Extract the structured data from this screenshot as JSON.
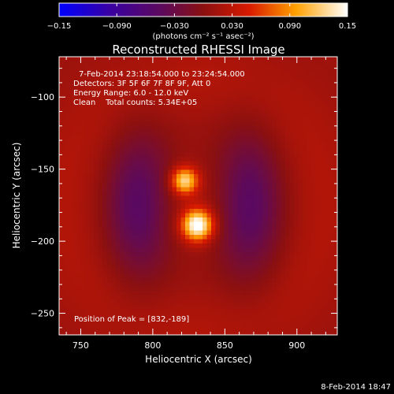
{
  "chart_data": {
    "type": "heatmap",
    "title": "Reconstructed RHESSI Image",
    "xlabel": "Heliocentric X (arcsec)",
    "ylabel": "Heliocentric Y (arcsec)",
    "xlim": [
      735,
      928
    ],
    "ylim": [
      -265,
      -72
    ],
    "x_ticks": [
      750,
      800,
      850,
      900
    ],
    "y_ticks": [
      -100,
      -150,
      -200,
      -250
    ],
    "colorbar": {
      "range": [
        -0.15,
        0.15
      ],
      "ticks": [
        "−0.15",
        "−0.090",
        "−0.030",
        "0.030",
        "0.090",
        "0.15"
      ],
      "units_label": "(photons cm⁻² s⁻¹ asec⁻²)",
      "colormap": "blue-purple-red-yellow-white"
    },
    "annotations": [
      "7-Feb-2014 23:18:54.000 to 23:24:54.000",
      "Detectors: 3F 5F 6F 7F 8F 9F, Att 0",
      "Energy Range: 6.0 - 12.0 keV",
      "Clean    Total counts: 5.34E+05"
    ],
    "peak_label": "Position of Peak = [832,-189]",
    "sources": [
      {
        "x": 831,
        "y": -189,
        "sigma": 7.5,
        "amp": 0.15
      },
      {
        "x": 822,
        "y": -158,
        "sigma": 6.5,
        "amp": 0.118
      }
    ],
    "negative_lobes": [
      {
        "x": 790,
        "y": -175,
        "sigma": 17,
        "amp": -0.06
      },
      {
        "x": 867,
        "y": -175,
        "sigma": 17,
        "amp": -0.06
      }
    ],
    "background_level": 0.018
  },
  "footer": {
    "date": "8-Feb-2014 18:47"
  }
}
